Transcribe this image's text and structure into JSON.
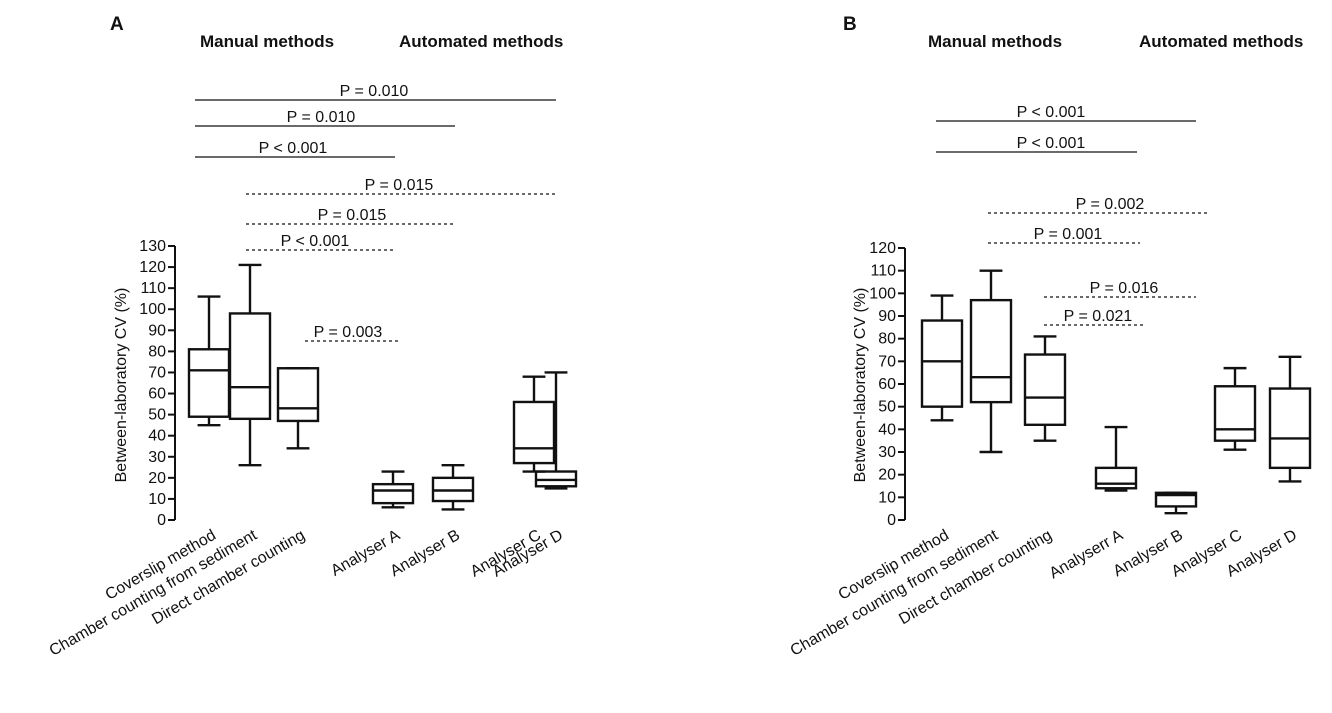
{
  "chart_data": [
    {
      "type": "box",
      "panel": "A",
      "ylabel": "Between-laboratory CV (%)",
      "ylim": [
        0,
        130
      ],
      "yticks": [
        0,
        10,
        20,
        30,
        40,
        50,
        60,
        70,
        80,
        90,
        100,
        110,
        120,
        130
      ],
      "group_labels": [
        "Manual methods",
        "Automated methods"
      ],
      "categories": [
        "Coverslip method",
        "Chamber counting from sediment",
        "Direct chamber counting",
        "Analyser A",
        "Analyser B",
        "Analyser C",
        "Analyser D"
      ],
      "boxes": [
        {
          "min": 45,
          "q1": 49,
          "median": 71,
          "q3": 81,
          "max": 106
        },
        {
          "min": 26,
          "q1": 48,
          "median": 63,
          "q3": 98,
          "max": 121
        },
        {
          "min": 34,
          "q1": 47,
          "median": 53,
          "q3": 72,
          "max": 72
        },
        {
          "min": 6,
          "q1": 8,
          "median": 14,
          "q3": 17,
          "max": 23
        },
        {
          "min": 5,
          "q1": 9,
          "median": 14,
          "q3": 20,
          "max": 26
        },
        {
          "min": 23,
          "q1": 27,
          "median": 34,
          "q3": 56,
          "max": 68
        },
        {
          "min": 15,
          "q1": 16,
          "median": 19,
          "q3": 23,
          "max": 70
        }
      ],
      "comparisons": [
        {
          "label": "P = 0.010",
          "from": 0,
          "to": 6,
          "style": "solid"
        },
        {
          "label": "P = 0.010",
          "from": 0,
          "to": 4,
          "style": "solid"
        },
        {
          "label": "P < 0.001",
          "from": 0,
          "to": 3,
          "style": "solid"
        },
        {
          "label": "P = 0.015",
          "from": 1,
          "to": 6,
          "style": "dashed"
        },
        {
          "label": "P = 0.015",
          "from": 1,
          "to": 4,
          "style": "dashed"
        },
        {
          "label": "P < 0.001",
          "from": 1,
          "to": 3,
          "style": "dashed"
        },
        {
          "label": "P = 0.003",
          "from": 2,
          "to": 3,
          "style": "dashed"
        }
      ]
    },
    {
      "type": "box",
      "panel": "B",
      "ylabel": "Between-laboratory CV (%)",
      "ylim": [
        0,
        120
      ],
      "yticks": [
        0,
        10,
        20,
        30,
        40,
        50,
        60,
        70,
        80,
        90,
        100,
        110,
        120
      ],
      "group_labels": [
        "Manual methods",
        "Automated methods"
      ],
      "categories": [
        "Coverslip method",
        "Chamber counting from sediment",
        "Direct chamber counting",
        "Analyserr A",
        "Analyser B",
        "Analyser C",
        "Analyser D"
      ],
      "boxes": [
        {
          "min": 44,
          "q1": 50,
          "median": 70,
          "q3": 88,
          "max": 99
        },
        {
          "min": 30,
          "q1": 52,
          "median": 63,
          "q3": 97,
          "max": 110
        },
        {
          "min": 35,
          "q1": 42,
          "median": 54,
          "q3": 73,
          "max": 81
        },
        {
          "min": 13,
          "q1": 14,
          "median": 16,
          "q3": 23,
          "max": 41
        },
        {
          "min": 3,
          "q1": 6,
          "median": 11,
          "q3": 12,
          "max": 12
        },
        {
          "min": 31,
          "q1": 35,
          "median": 40,
          "q3": 59,
          "max": 67
        },
        {
          "min": 17,
          "q1": 23,
          "median": 36,
          "q3": 58,
          "max": 72
        }
      ],
      "comparisons": [
        {
          "label": "P < 0.001",
          "from": 0,
          "to": 5,
          "style": "solid"
        },
        {
          "label": "P < 0.001",
          "from": 0,
          "to": 4,
          "style": "solid"
        },
        {
          "label": "P = 0.002",
          "from": 1,
          "to": 5,
          "style": "dashed"
        },
        {
          "label": "P = 0.001",
          "from": 1,
          "to": 4,
          "style": "dashed"
        },
        {
          "label": "P = 0.016",
          "from": 2,
          "to": 5,
          "style": "dashed"
        },
        {
          "label": "P = 0.021",
          "from": 2,
          "to": 4,
          "style": "dashed"
        }
      ]
    }
  ]
}
